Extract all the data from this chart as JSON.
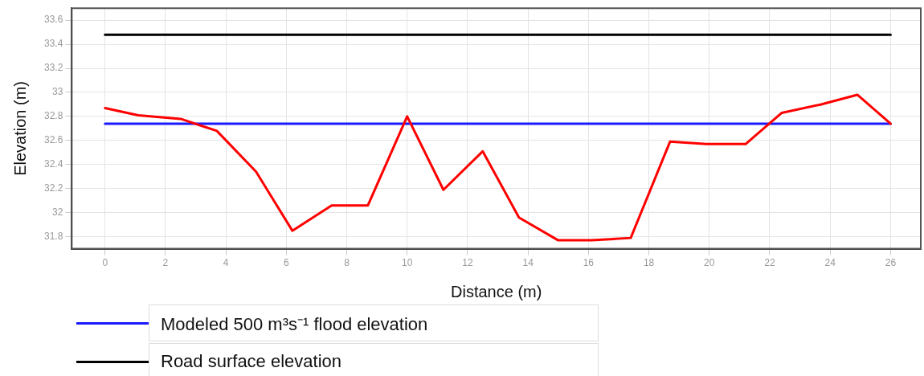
{
  "chart_data": {
    "type": "line",
    "xlabel": "Distance (m)",
    "ylabel": "Elevation (m)",
    "xlim": [
      -1.1,
      27
    ],
    "xticks": [
      0,
      2,
      4,
      6,
      8,
      10,
      12,
      14,
      16,
      18,
      20,
      22,
      24,
      26
    ],
    "ylim": [
      31.7,
      33.7
    ],
    "yticks": [
      31.8,
      32,
      32.2,
      32.4,
      32.6,
      32.8,
      33,
      33.2,
      33.4,
      33.6
    ],
    "grid": true,
    "legend": "bottom left",
    "marker": "none",
    "line_style": "solid",
    "series": [
      {
        "color": "#ff0000",
        "x": [
          0,
          1.1,
          2.5,
          3.7,
          5,
          6.2,
          7.5,
          8.7,
          10,
          11.2,
          12.5,
          13.7,
          15,
          16.1,
          17.4,
          18.7,
          19.9,
          21.2,
          22.4,
          23.7,
          24.9,
          26
        ],
        "values": [
          32.87,
          32.81,
          32.78,
          32.68,
          32.34,
          31.85,
          32.06,
          32.06,
          32.8,
          32.19,
          32.51,
          31.96,
          31.77,
          31.77,
          31.79,
          32.59,
          32.57,
          32.57,
          32.83,
          32.9,
          32.98,
          32.74
        ]
      },
      {
        "name": "Modeled 500 m³s⁻¹ flood elevation",
        "color": "#1a1aff",
        "x": [
          0,
          26
        ],
        "values": [
          32.74,
          32.74
        ]
      },
      {
        "name": "Road surface elevation",
        "color": "#000000",
        "x": [
          0,
          26
        ],
        "values": [
          33.48,
          33.48
        ]
      }
    ]
  }
}
